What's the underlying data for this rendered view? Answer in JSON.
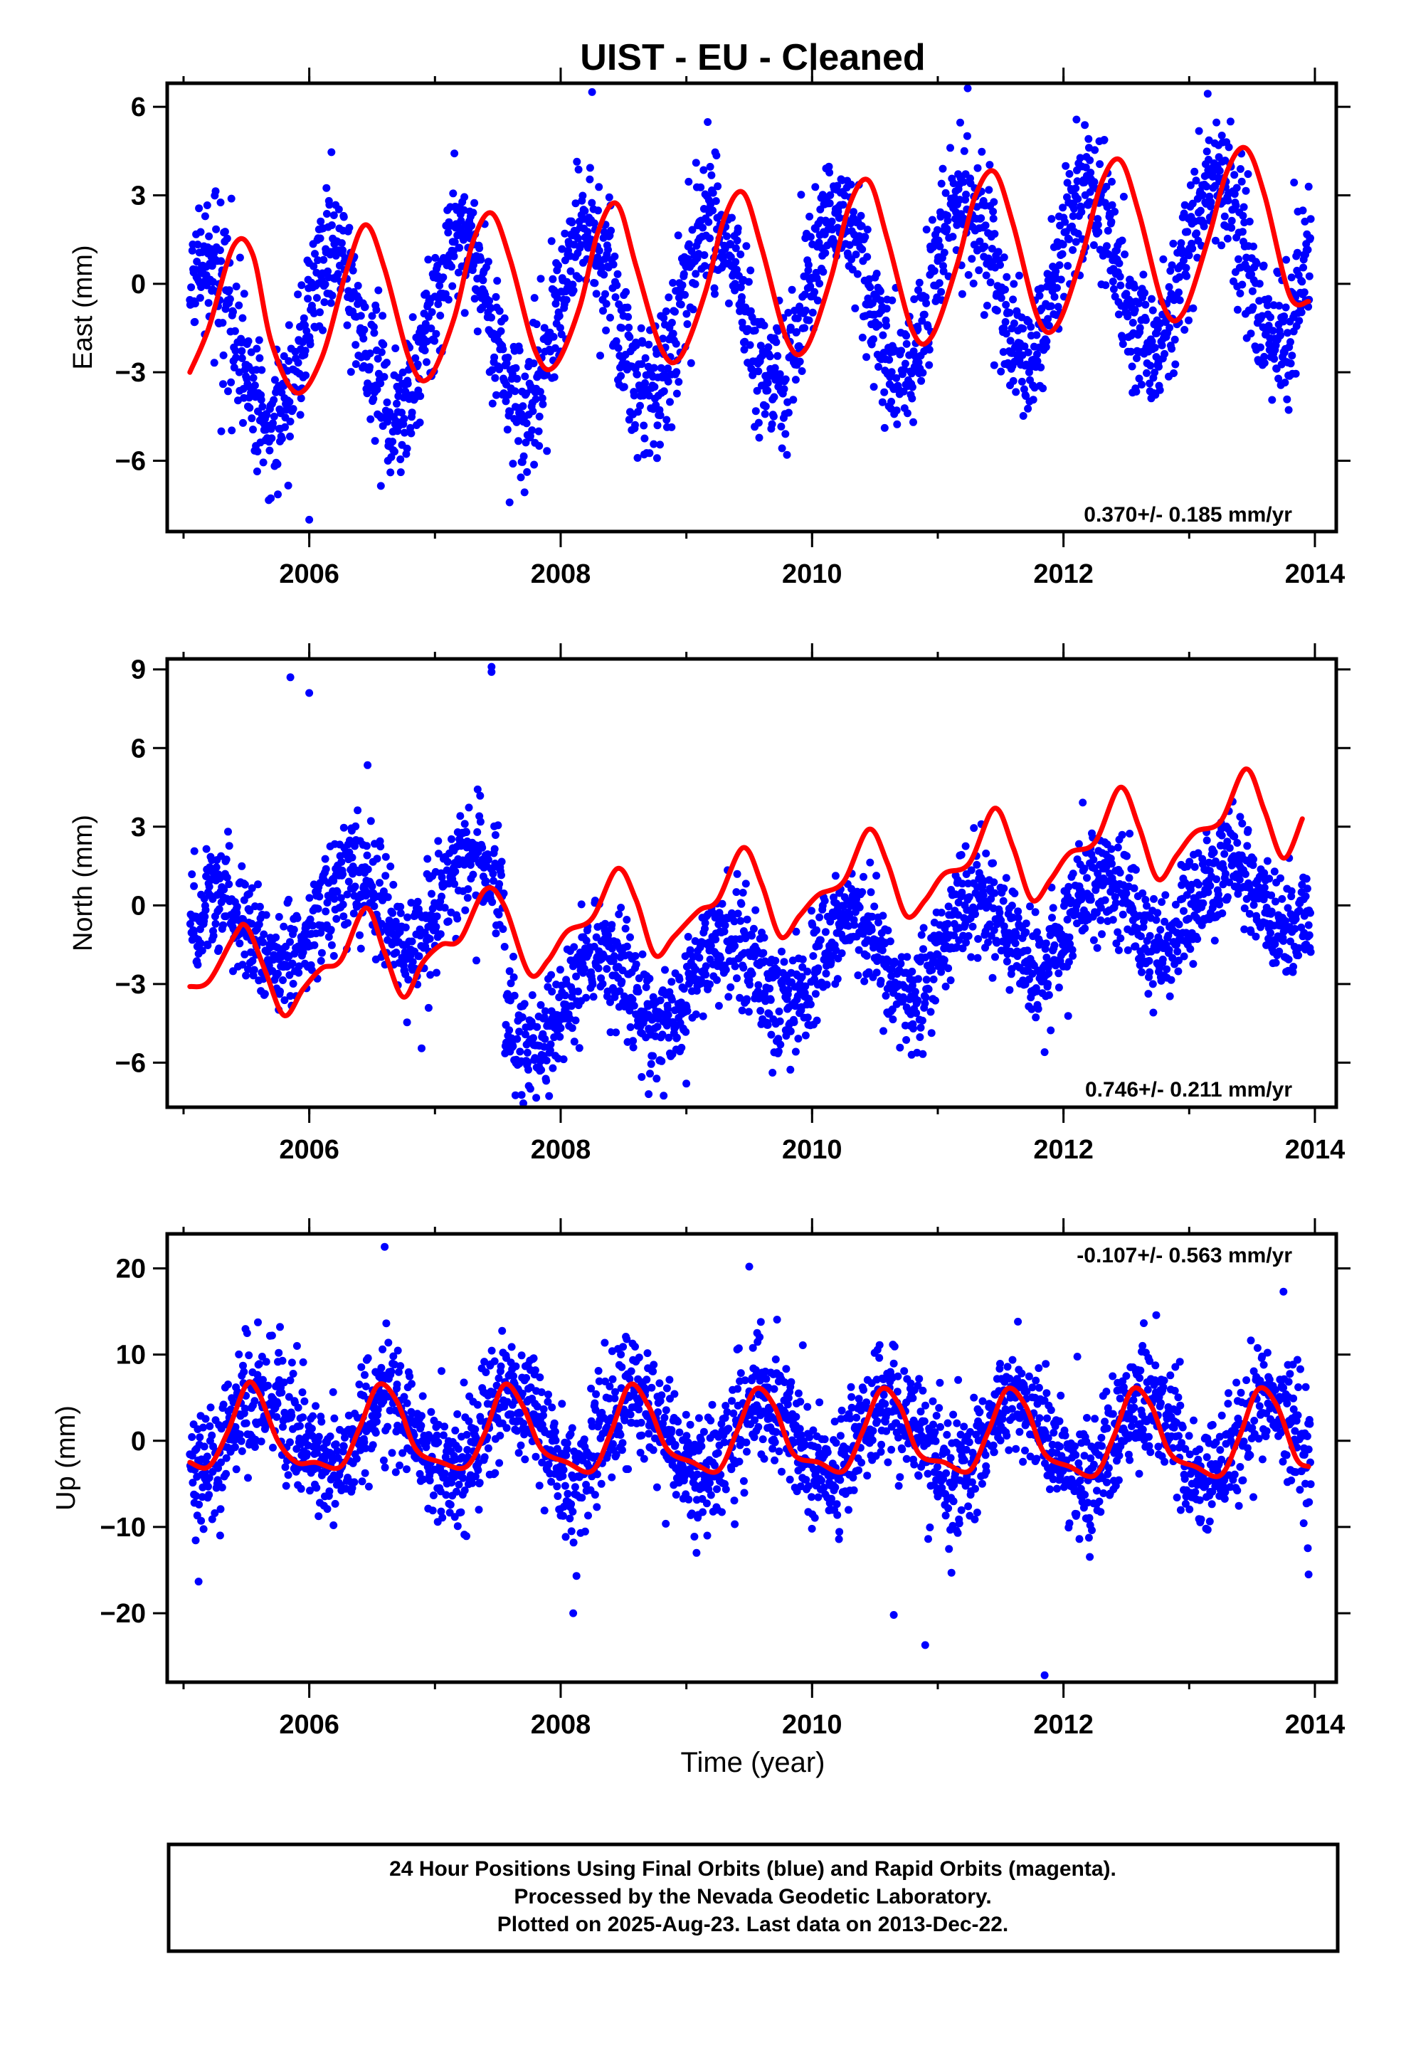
{
  "title": "UIST  - EU - Cleaned",
  "colors": {
    "points": "#0000ff",
    "fit": "#ff0000",
    "frame": "#000000"
  },
  "chart_data": [
    {
      "type": "scatter",
      "name": "east",
      "ylabel": "East (mm)",
      "xlabel": "",
      "xlim": [
        2004.87,
        2014.17
      ],
      "ylim": [
        -8.4,
        6.8
      ],
      "x_ticks": [
        2006,
        2008,
        2010,
        2012,
        2014
      ],
      "x_tick_labels": [
        "2006",
        "2008",
        "2010",
        "2012",
        "2014"
      ],
      "y_ticks": [
        -6,
        -3,
        0,
        3,
        6
      ],
      "y_tick_labels": [
        "−6",
        "−3",
        "0",
        "3",
        "6"
      ],
      "annotation": "0.370+/- 0.185 mm/yr",
      "annotation_pos": "bottom-right",
      "grid": false,
      "series": [
        {
          "type": "line",
          "x": [
            2005.05,
            2005.2,
            2005.4,
            2005.55,
            2005.7,
            2005.9,
            2006.1,
            2006.3,
            2006.45,
            2006.6,
            2006.8,
            2006.95,
            2007.15,
            2007.3,
            2007.45,
            2007.6,
            2007.8,
            2007.95,
            2008.15,
            2008.3,
            2008.45,
            2008.6,
            2008.8,
            2008.95,
            2009.15,
            2009.3,
            2009.45,
            2009.6,
            2009.8,
            2009.95,
            2010.15,
            2010.3,
            2010.45,
            2010.6,
            2010.8,
            2010.95,
            2011.15,
            2011.3,
            2011.45,
            2011.6,
            2011.8,
            2011.95,
            2012.15,
            2012.3,
            2012.45,
            2012.6,
            2012.8,
            2012.95,
            2013.15,
            2013.3,
            2013.45,
            2013.6,
            2013.8,
            2013.95
          ],
          "y": [
            -3.0,
            -1.5,
            1.3,
            1.0,
            -2.0,
            -3.7,
            -2.5,
            0.5,
            2.0,
            0.5,
            -2.6,
            -3.2,
            -1.2,
            1.4,
            2.4,
            0.8,
            -2.3,
            -2.8,
            -0.8,
            1.8,
            2.7,
            0.6,
            -2.2,
            -2.5,
            -0.3,
            2.2,
            3.1,
            1.2,
            -1.9,
            -2.2,
            0.2,
            2.7,
            3.5,
            1.5,
            -1.6,
            -1.8,
            0.6,
            3.0,
            3.8,
            2.0,
            -1.2,
            -1.4,
            1.0,
            3.4,
            4.2,
            2.4,
            -0.8,
            -1.0,
            1.5,
            3.8,
            4.6,
            3.0,
            -0.4,
            -0.6
          ]
        },
        {
          "type": "scatter",
          "trend": 0.37,
          "offset": -0.6,
          "amplitude": 2.9,
          "phase": 0.2,
          "noise": 1.15,
          "outliers": [
            [
              2009.8,
              -5.8
            ],
            [
              2005.3,
              -5.0
            ],
            [
              2006.0,
              -8.0
            ],
            [
              2008.25,
              6.5
            ]
          ]
        }
      ]
    },
    {
      "type": "scatter",
      "name": "north",
      "ylabel": "North (mm)",
      "xlabel": "",
      "xlim": [
        2004.87,
        2014.17
      ],
      "ylim": [
        -7.7,
        9.4
      ],
      "x_ticks": [
        2006,
        2008,
        2010,
        2012,
        2014
      ],
      "x_tick_labels": [
        "2006",
        "2008",
        "2010",
        "2012",
        "2014"
      ],
      "y_ticks": [
        -6,
        -3,
        0,
        3,
        6,
        9
      ],
      "y_tick_labels": [
        "−6",
        "−3",
        "0",
        "3",
        "6",
        "9"
      ],
      "annotation": "0.746+/- 0.211 mm/yr",
      "annotation_pos": "bottom-right",
      "grid": false,
      "series": [
        {
          "type": "line",
          "x": [
            2005.05,
            2005.2,
            2005.4,
            2005.5,
            2005.65,
            2005.8,
            2005.95,
            2006.1,
            2006.25,
            2006.45,
            2006.6,
            2006.75,
            2006.9,
            2007.05,
            2007.2,
            2007.4,
            2007.55,
            2007.75,
            2007.9,
            2008.05,
            2008.25,
            2008.45,
            2008.6,
            2008.75,
            2008.9,
            2009.1,
            2009.25,
            2009.45,
            2009.6,
            2009.75,
            2009.9,
            2010.05,
            2010.25,
            2010.45,
            2010.6,
            2010.75,
            2010.9,
            2011.05,
            2011.25,
            2011.45,
            2011.6,
            2011.75,
            2011.9,
            2012.05,
            2012.25,
            2012.45,
            2012.6,
            2012.75,
            2012.9,
            2013.05,
            2013.25,
            2013.45,
            2013.6,
            2013.75,
            2013.9
          ],
          "y": [
            -3.1,
            -2.9,
            -1.2,
            -0.8,
            -2.5,
            -4.2,
            -3.2,
            -2.4,
            -2.1,
            -0.1,
            -1.8,
            -3.5,
            -2.2,
            -1.5,
            -1.3,
            0.6,
            0.0,
            -2.6,
            -2.1,
            -1.0,
            -0.5,
            1.4,
            0.2,
            -1.9,
            -1.2,
            -0.2,
            0.2,
            2.2,
            0.8,
            -1.2,
            -0.4,
            0.4,
            0.9,
            2.9,
            1.6,
            -0.4,
            0.2,
            1.2,
            1.6,
            3.7,
            2.2,
            0.2,
            1.0,
            2.0,
            2.4,
            4.5,
            3.0,
            1.0,
            1.9,
            2.8,
            3.2,
            5.2,
            3.6,
            1.8,
            3.3
          ]
        },
        {
          "type": "scatter",
          "trend": 0.75,
          "offset": -2.6,
          "amplitude": 1.6,
          "phase": 0.3,
          "noise": 1.05,
          "step": {
            "x": 2007.55,
            "before": 4.6
          },
          "outliers": [
            [
              2005.85,
              8.7
            ],
            [
              2006.0,
              8.1
            ],
            [
              2007.45,
              9.1
            ],
            [
              2007.45,
              8.9
            ],
            [
              2008.7,
              -7.2
            ],
            [
              2009.0,
              -6.8
            ],
            [
              2011.85,
              -5.6
            ]
          ]
        }
      ]
    },
    {
      "type": "scatter",
      "name": "up",
      "ylabel": "Up (mm)",
      "xlabel": "Time (year)",
      "xlim": [
        2004.87,
        2014.17
      ],
      "ylim": [
        -28.0,
        24.0
      ],
      "x_ticks": [
        2006,
        2008,
        2010,
        2012,
        2014
      ],
      "x_tick_labels": [
        "2006",
        "2008",
        "2010",
        "2012",
        "2014"
      ],
      "y_ticks": [
        -20,
        -10,
        0,
        10,
        20
      ],
      "y_tick_labels": [
        "−20",
        "−10",
        "0",
        "10",
        "20"
      ],
      "annotation": "-0.107+/- 0.563 mm/yr",
      "annotation_pos": "top-right",
      "grid": false,
      "series": [
        {
          "type": "line",
          "x": [
            2005.05,
            2005.2,
            2005.35,
            2005.5,
            2005.6,
            2005.75,
            2005.9,
            2006.05,
            2006.25,
            2006.4,
            2006.55,
            2006.7,
            2006.85,
            2007.05,
            2007.25,
            2007.4,
            2007.55,
            2007.7,
            2007.85,
            2008.05,
            2008.25,
            2008.4,
            2008.55,
            2008.7,
            2008.85,
            2009.05,
            2009.25,
            2009.4,
            2009.55,
            2009.7,
            2009.85,
            2010.05,
            2010.25,
            2010.4,
            2010.55,
            2010.7,
            2010.85,
            2011.05,
            2011.25,
            2011.4,
            2011.55,
            2011.7,
            2011.85,
            2012.05,
            2012.25,
            2012.4,
            2012.55,
            2012.7,
            2012.85,
            2013.05,
            2013.25,
            2013.4,
            2013.55,
            2013.7,
            2013.85,
            2013.95
          ],
          "y": [
            -2.5,
            -3.0,
            1.0,
            6.5,
            5.5,
            0.0,
            -2.5,
            -2.5,
            -3.0,
            1.5,
            6.5,
            4.5,
            -1.0,
            -2.5,
            -3.0,
            1.0,
            6.5,
            4.0,
            -1.0,
            -2.5,
            -3.5,
            1.0,
            6.5,
            4.0,
            -1.0,
            -2.5,
            -3.5,
            1.0,
            6.0,
            4.0,
            -1.5,
            -2.5,
            -3.5,
            1.0,
            6.0,
            4.0,
            -1.5,
            -2.5,
            -3.5,
            1.0,
            6.0,
            4.0,
            -1.5,
            -3.0,
            -4.0,
            0.5,
            6.0,
            4.0,
            -1.5,
            -3.0,
            -4.0,
            0.5,
            6.0,
            4.0,
            -2.0,
            -3.0
          ]
        },
        {
          "type": "scatter",
          "trend": -0.1,
          "offset": 0.5,
          "amplitude": 4.5,
          "phase": 0.62,
          "noise": 3.6,
          "outliers": [
            [
              2006.6,
              22.5
            ],
            [
              2009.5,
              20.2
            ],
            [
              2013.75,
              17.3
            ],
            [
              2010.65,
              -20.2
            ],
            [
              2010.9,
              -23.7
            ],
            [
              2011.85,
              -27.2
            ],
            [
              2008.1,
              -20.0
            ],
            [
              2013.95,
              -15.5
            ]
          ]
        }
      ]
    }
  ],
  "footer": {
    "line1": "24 Hour Positions Using Final Orbits (blue) and Rapid Orbits (magenta).",
    "line2": "Processed by the Nevada Geodetic Laboratory.",
    "line3": "Plotted on 2025-Aug-23. Last data on 2013-Dec-22."
  }
}
